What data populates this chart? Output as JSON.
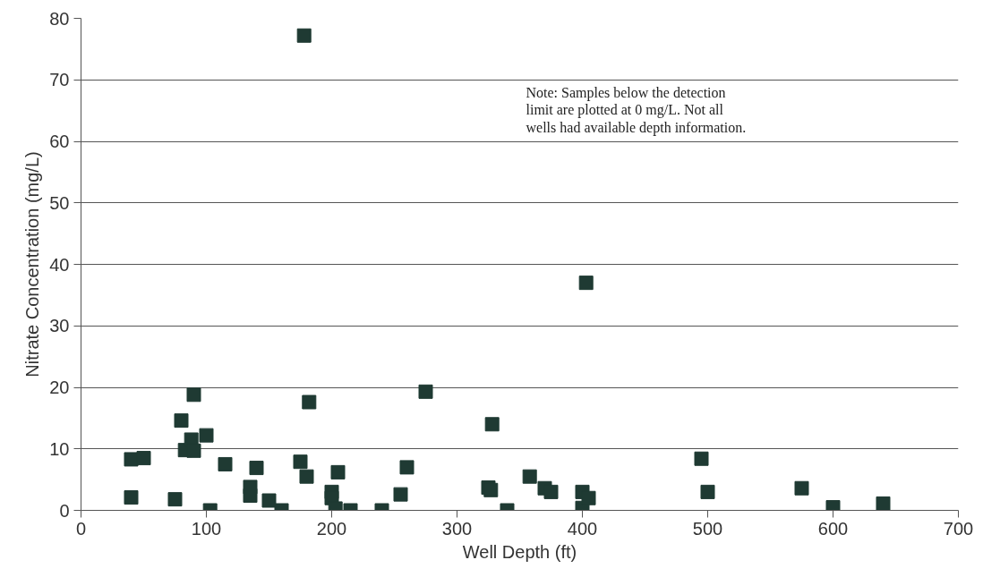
{
  "chart_data": {
    "type": "scatter",
    "xlabel": "Well Depth (ft)",
    "ylabel": "Nitrate Concentration (mg/L)",
    "annotations": [
      "Note: Samples below the detection limit are plotted at 0 mg/L.  Not all wells had available depth information."
    ],
    "x": [
      40,
      40,
      50,
      75,
      80,
      83,
      88,
      90,
      90,
      100,
      103,
      115,
      135,
      135,
      140,
      150,
      160,
      175,
      178,
      180,
      182,
      200,
      200,
      203,
      205,
      215,
      240,
      255,
      260,
      275,
      325,
      327,
      328,
      340,
      358,
      370,
      375,
      400,
      400,
      403,
      405,
      495,
      500,
      575,
      600,
      640
    ],
    "values": [
      8.3,
      2.1,
      8.5,
      1.8,
      14.6,
      9.8,
      11.5,
      18.8,
      9.7,
      12.2,
      0,
      7.5,
      3.8,
      2.4,
      6.9,
      1.6,
      0,
      7.9,
      77.2,
      5.5,
      17.6,
      3.0,
      2.0,
      0.3,
      6.2,
      0,
      0,
      2.6,
      7.0,
      19.3,
      3.7,
      3.3,
      14.0,
      0,
      5.5,
      3.6,
      3.0,
      3.0,
      0.4,
      37.0,
      2.0,
      8.4,
      3.0,
      3.6,
      0.5,
      1.1
    ],
    "color": "#1f3a33",
    "marker": "square",
    "xlim": [
      0,
      700
    ],
    "ylim": [
      0,
      80
    ],
    "xticks": [
      0,
      100,
      200,
      300,
      400,
      500,
      600,
      700
    ],
    "yticks": [
      0,
      10,
      20,
      30,
      40,
      50,
      60,
      70,
      80
    ],
    "grid": "y"
  }
}
